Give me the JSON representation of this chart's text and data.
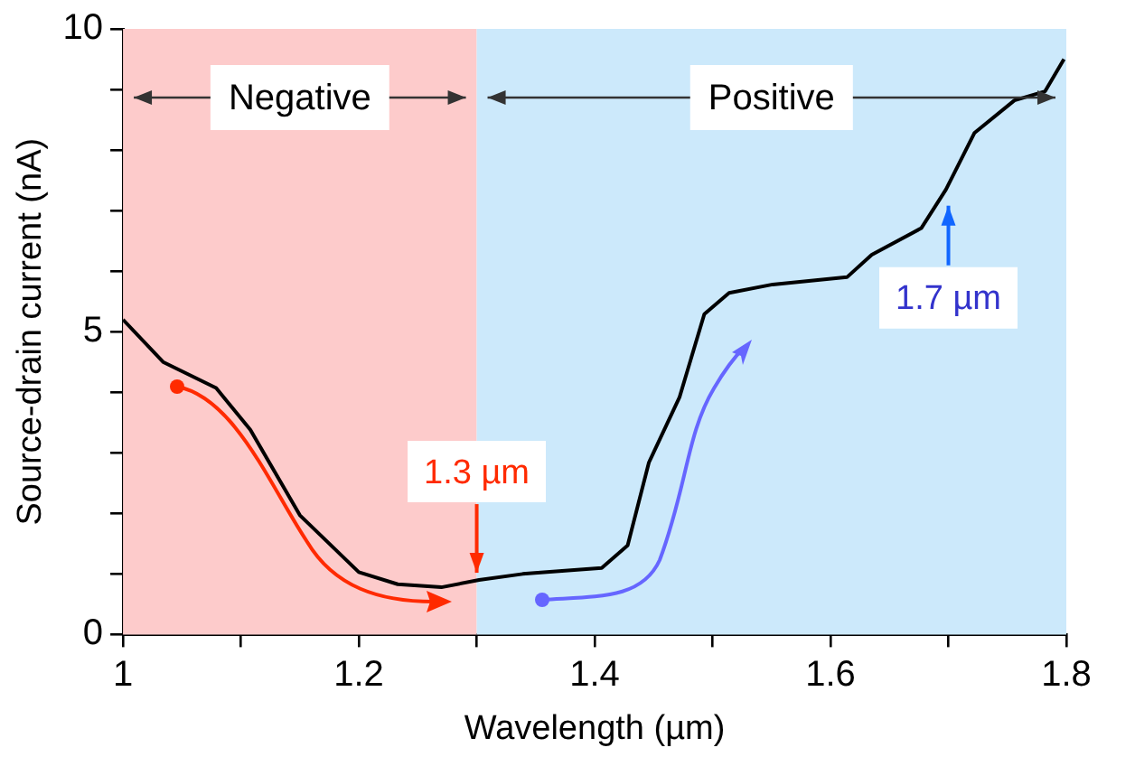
{
  "chart_data": {
    "type": "line",
    "xlabel": "Wavelength (µm)",
    "ylabel": "Source-drain current (nA)",
    "xlim": [
      1,
      1.8
    ],
    "ylim": [
      0,
      10
    ],
    "xticks": [
      1,
      {
        "value": 1.1,
        "label": null
      },
      1.2,
      {
        "value": 1.3,
        "label": null
      },
      1.4,
      {
        "value": 1.5,
        "label": null
      },
      1.6,
      {
        "value": 1.7,
        "label": null
      },
      1.8
    ],
    "yticks": [
      0,
      {
        "value": 1,
        "label": null
      },
      {
        "value": 2,
        "label": null
      },
      {
        "value": 3,
        "label": null
      },
      {
        "value": 4,
        "label": null
      },
      5,
      {
        "value": 6,
        "label": null
      },
      {
        "value": 7,
        "label": null
      },
      {
        "value": 8,
        "label": null
      },
      {
        "value": 9,
        "label": null
      },
      10
    ],
    "series": [
      {
        "color": "#000000",
        "x": [
          1,
          1.034,
          1.079,
          1.108,
          1.15,
          1.2,
          1.233,
          1.27,
          1.302,
          1.339,
          1.38,
          1.406,
          1.428,
          1.446,
          1.472,
          1.493,
          1.514,
          1.551,
          1.614,
          1.635,
          1.677,
          1.698,
          1.722,
          1.756,
          1.782,
          1.798
        ],
        "values": [
          5.2,
          4.5,
          4.07,
          3.38,
          1.97,
          1.03,
          0.83,
          0.78,
          0.9,
          1.0,
          1.06,
          1.1,
          1.47,
          2.84,
          3.92,
          5.29,
          5.64,
          5.78,
          5.9,
          6.27,
          6.71,
          7.35,
          8.28,
          8.82,
          8.97,
          9.5
        ]
      }
    ],
    "bands": [
      {
        "axis": "x",
        "from": 1,
        "to": 1.3,
        "label": "Negative",
        "color": "#fdcbcb"
      },
      {
        "axis": "x",
        "from": 1.3,
        "to": 1.8,
        "label": "Positive",
        "color": "#cce9fb"
      }
    ],
    "annotations": [
      {
        "text": "1.3 µm",
        "x": 1.3,
        "y": 0.9
      },
      {
        "text": "1.7 µm",
        "x": 1.7,
        "y": 7.2
      }
    ],
    "grid": false,
    "legend": false,
    "marker": "none",
    "line_style": "solid"
  }
}
